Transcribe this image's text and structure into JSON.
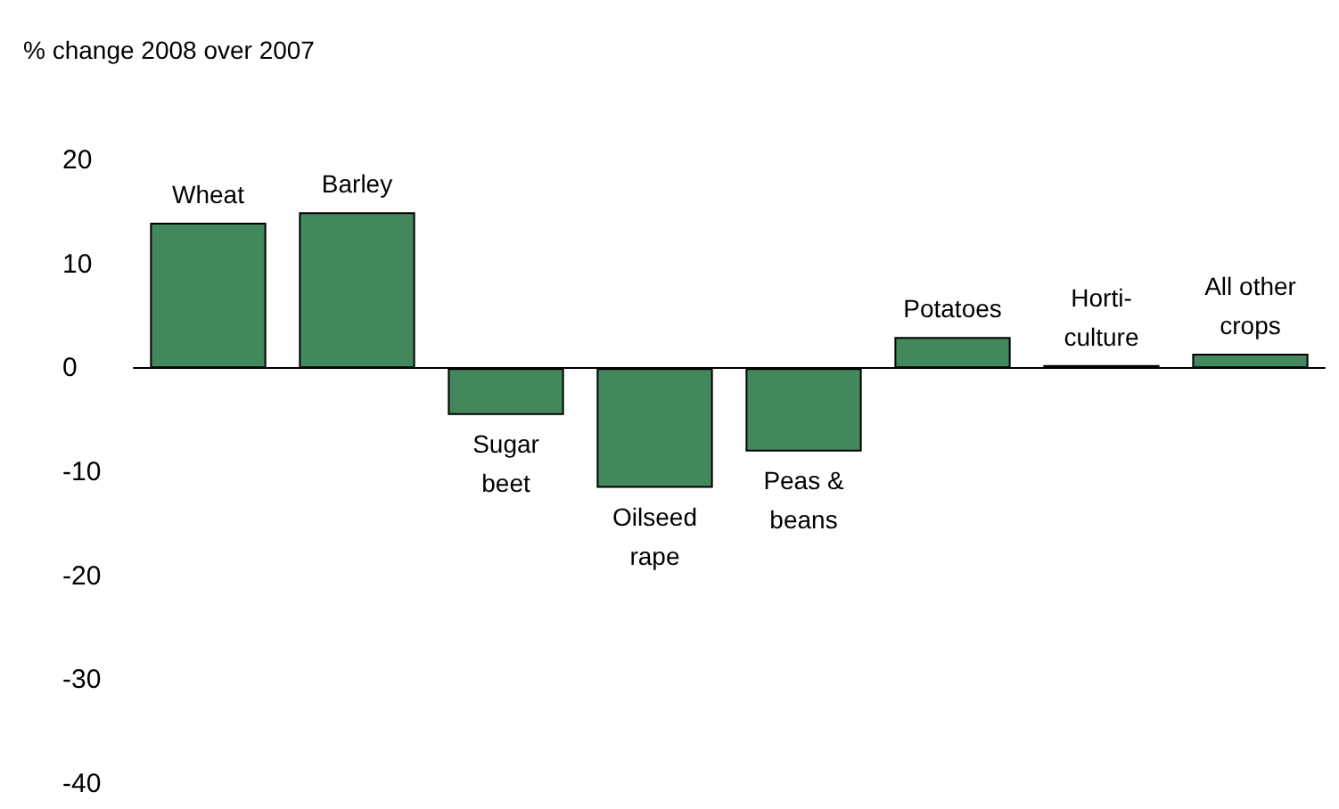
{
  "chart_data": {
    "type": "bar",
    "ylabel": "% change 2008 over 2007",
    "categories": [
      "Wheat",
      "Barley",
      "Sugar\nbeet",
      "Oilseed\nrape",
      "Peas &\nbeans",
      "Potatoes",
      "Horti-\nculture",
      "All other\ncrops"
    ],
    "values": [
      14,
      15,
      -4.5,
      -11.5,
      -8,
      3,
      0.3,
      1.4
    ],
    "color": "#43875c",
    "ylim": [
      -40,
      20
    ],
    "yticks": [
      -40,
      -30,
      -20,
      -10,
      0,
      10,
      20
    ],
    "grid": false
  }
}
